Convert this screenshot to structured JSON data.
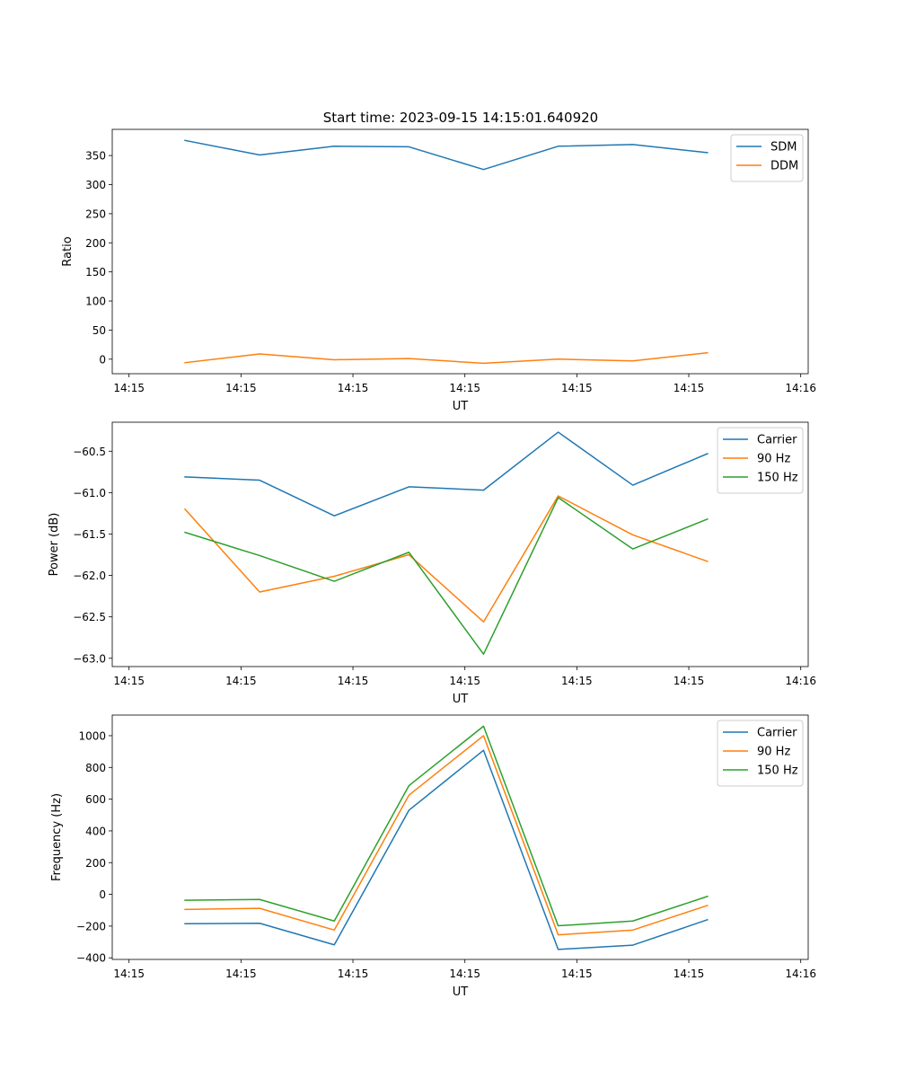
{
  "figure": {
    "title": "Start time: 2023-09-15 14:15:01.640920"
  },
  "colors": {
    "blue": "#1f77b4",
    "orange": "#ff7f0e",
    "green": "#2ca02c"
  },
  "chart_data": [
    {
      "type": "line",
      "title": "Start time: 2023-09-15 14:15:01.640920",
      "xlabel": "UT",
      "ylabel": "Ratio",
      "xlim": [
        -0.225,
        9.1
      ],
      "ylim": [
        -25,
        395
      ],
      "x": [
        0.75,
        1.75,
        2.75,
        3.75,
        4.75,
        5.75,
        6.75,
        7.75
      ],
      "xticks": [
        0,
        1.5,
        3,
        4.5,
        6,
        7.5,
        9
      ],
      "xtick_labels": [
        "14:15",
        "14:15",
        "14:15",
        "14:15",
        "14:15",
        "14:15",
        "14:16"
      ],
      "yticks": [
        0,
        50,
        100,
        150,
        200,
        250,
        300,
        350
      ],
      "ytick_labels": [
        "0",
        "50",
        "100",
        "150",
        "200",
        "250",
        "300",
        "350"
      ],
      "legend": "top-right",
      "series": [
        {
          "name": "SDM",
          "color": "#1f77b4",
          "values": [
            376,
            351,
            366,
            365,
            326,
            366,
            369,
            355
          ]
        },
        {
          "name": "DDM",
          "color": "#ff7f0e",
          "values": [
            -6,
            9,
            -1,
            1,
            -7,
            0,
            -3,
            11
          ]
        }
      ]
    },
    {
      "type": "line",
      "title": "",
      "xlabel": "UT",
      "ylabel": "Power (dB)",
      "xlim": [
        -0.225,
        9.1
      ],
      "ylim": [
        -63.1,
        -60.15
      ],
      "x": [
        0.75,
        1.75,
        2.75,
        3.75,
        4.75,
        5.75,
        6.75,
        7.75
      ],
      "xticks": [
        0,
        1.5,
        3,
        4.5,
        6,
        7.5,
        9
      ],
      "xtick_labels": [
        "14:15",
        "14:15",
        "14:15",
        "14:15",
        "14:15",
        "14:15",
        "14:16"
      ],
      "yticks": [
        -63.0,
        -62.5,
        -62.0,
        -61.5,
        -61.0,
        -60.5
      ],
      "ytick_labels": [
        "−63.0",
        "−62.5",
        "−62.0",
        "−61.5",
        "−61.0",
        "−60.5"
      ],
      "legend": "top-right",
      "series": [
        {
          "name": "Carrier",
          "color": "#1f77b4",
          "values": [
            -60.81,
            -60.85,
            -61.28,
            -60.93,
            -60.97,
            -60.27,
            -60.91,
            -60.53
          ]
        },
        {
          "name": "90 Hz",
          "color": "#ff7f0e",
          "values": [
            -61.2,
            -62.2,
            -62.01,
            -61.75,
            -62.56,
            -61.04,
            -61.51,
            -61.83
          ]
        },
        {
          "name": "150 Hz",
          "color": "#2ca02c",
          "values": [
            -61.48,
            -61.76,
            -62.07,
            -61.72,
            -62.95,
            -61.06,
            -61.68,
            -61.32
          ]
        }
      ]
    },
    {
      "type": "line",
      "title": "",
      "xlabel": "UT",
      "ylabel": "Frequency (Hz)",
      "xlim": [
        -0.225,
        9.1
      ],
      "ylim": [
        -410,
        1130
      ],
      "x": [
        0.75,
        1.75,
        2.75,
        3.75,
        4.75,
        5.75,
        6.75,
        7.75
      ],
      "xticks": [
        0,
        1.5,
        3,
        4.5,
        6,
        7.5,
        9
      ],
      "xtick_labels": [
        "14:15",
        "14:15",
        "14:15",
        "14:15",
        "14:15",
        "14:15",
        "14:16"
      ],
      "yticks": [
        -400,
        -200,
        0,
        200,
        400,
        600,
        800,
        1000
      ],
      "ytick_labels": [
        "−400",
        "−200",
        "0",
        "200",
        "400",
        "600",
        "800",
        "1000"
      ],
      "legend": "top-right",
      "series": [
        {
          "name": "Carrier",
          "color": "#1f77b4",
          "values": [
            -185,
            -182,
            -318,
            530,
            908,
            -347,
            -320,
            -160
          ]
        },
        {
          "name": "90 Hz",
          "color": "#ff7f0e",
          "values": [
            -95,
            -88,
            -225,
            625,
            1000,
            -255,
            -225,
            -70
          ]
        },
        {
          "name": "150 Hz",
          "color": "#2ca02c",
          "values": [
            -37,
            -32,
            -168,
            685,
            1060,
            -198,
            -168,
            -13
          ]
        }
      ]
    }
  ]
}
